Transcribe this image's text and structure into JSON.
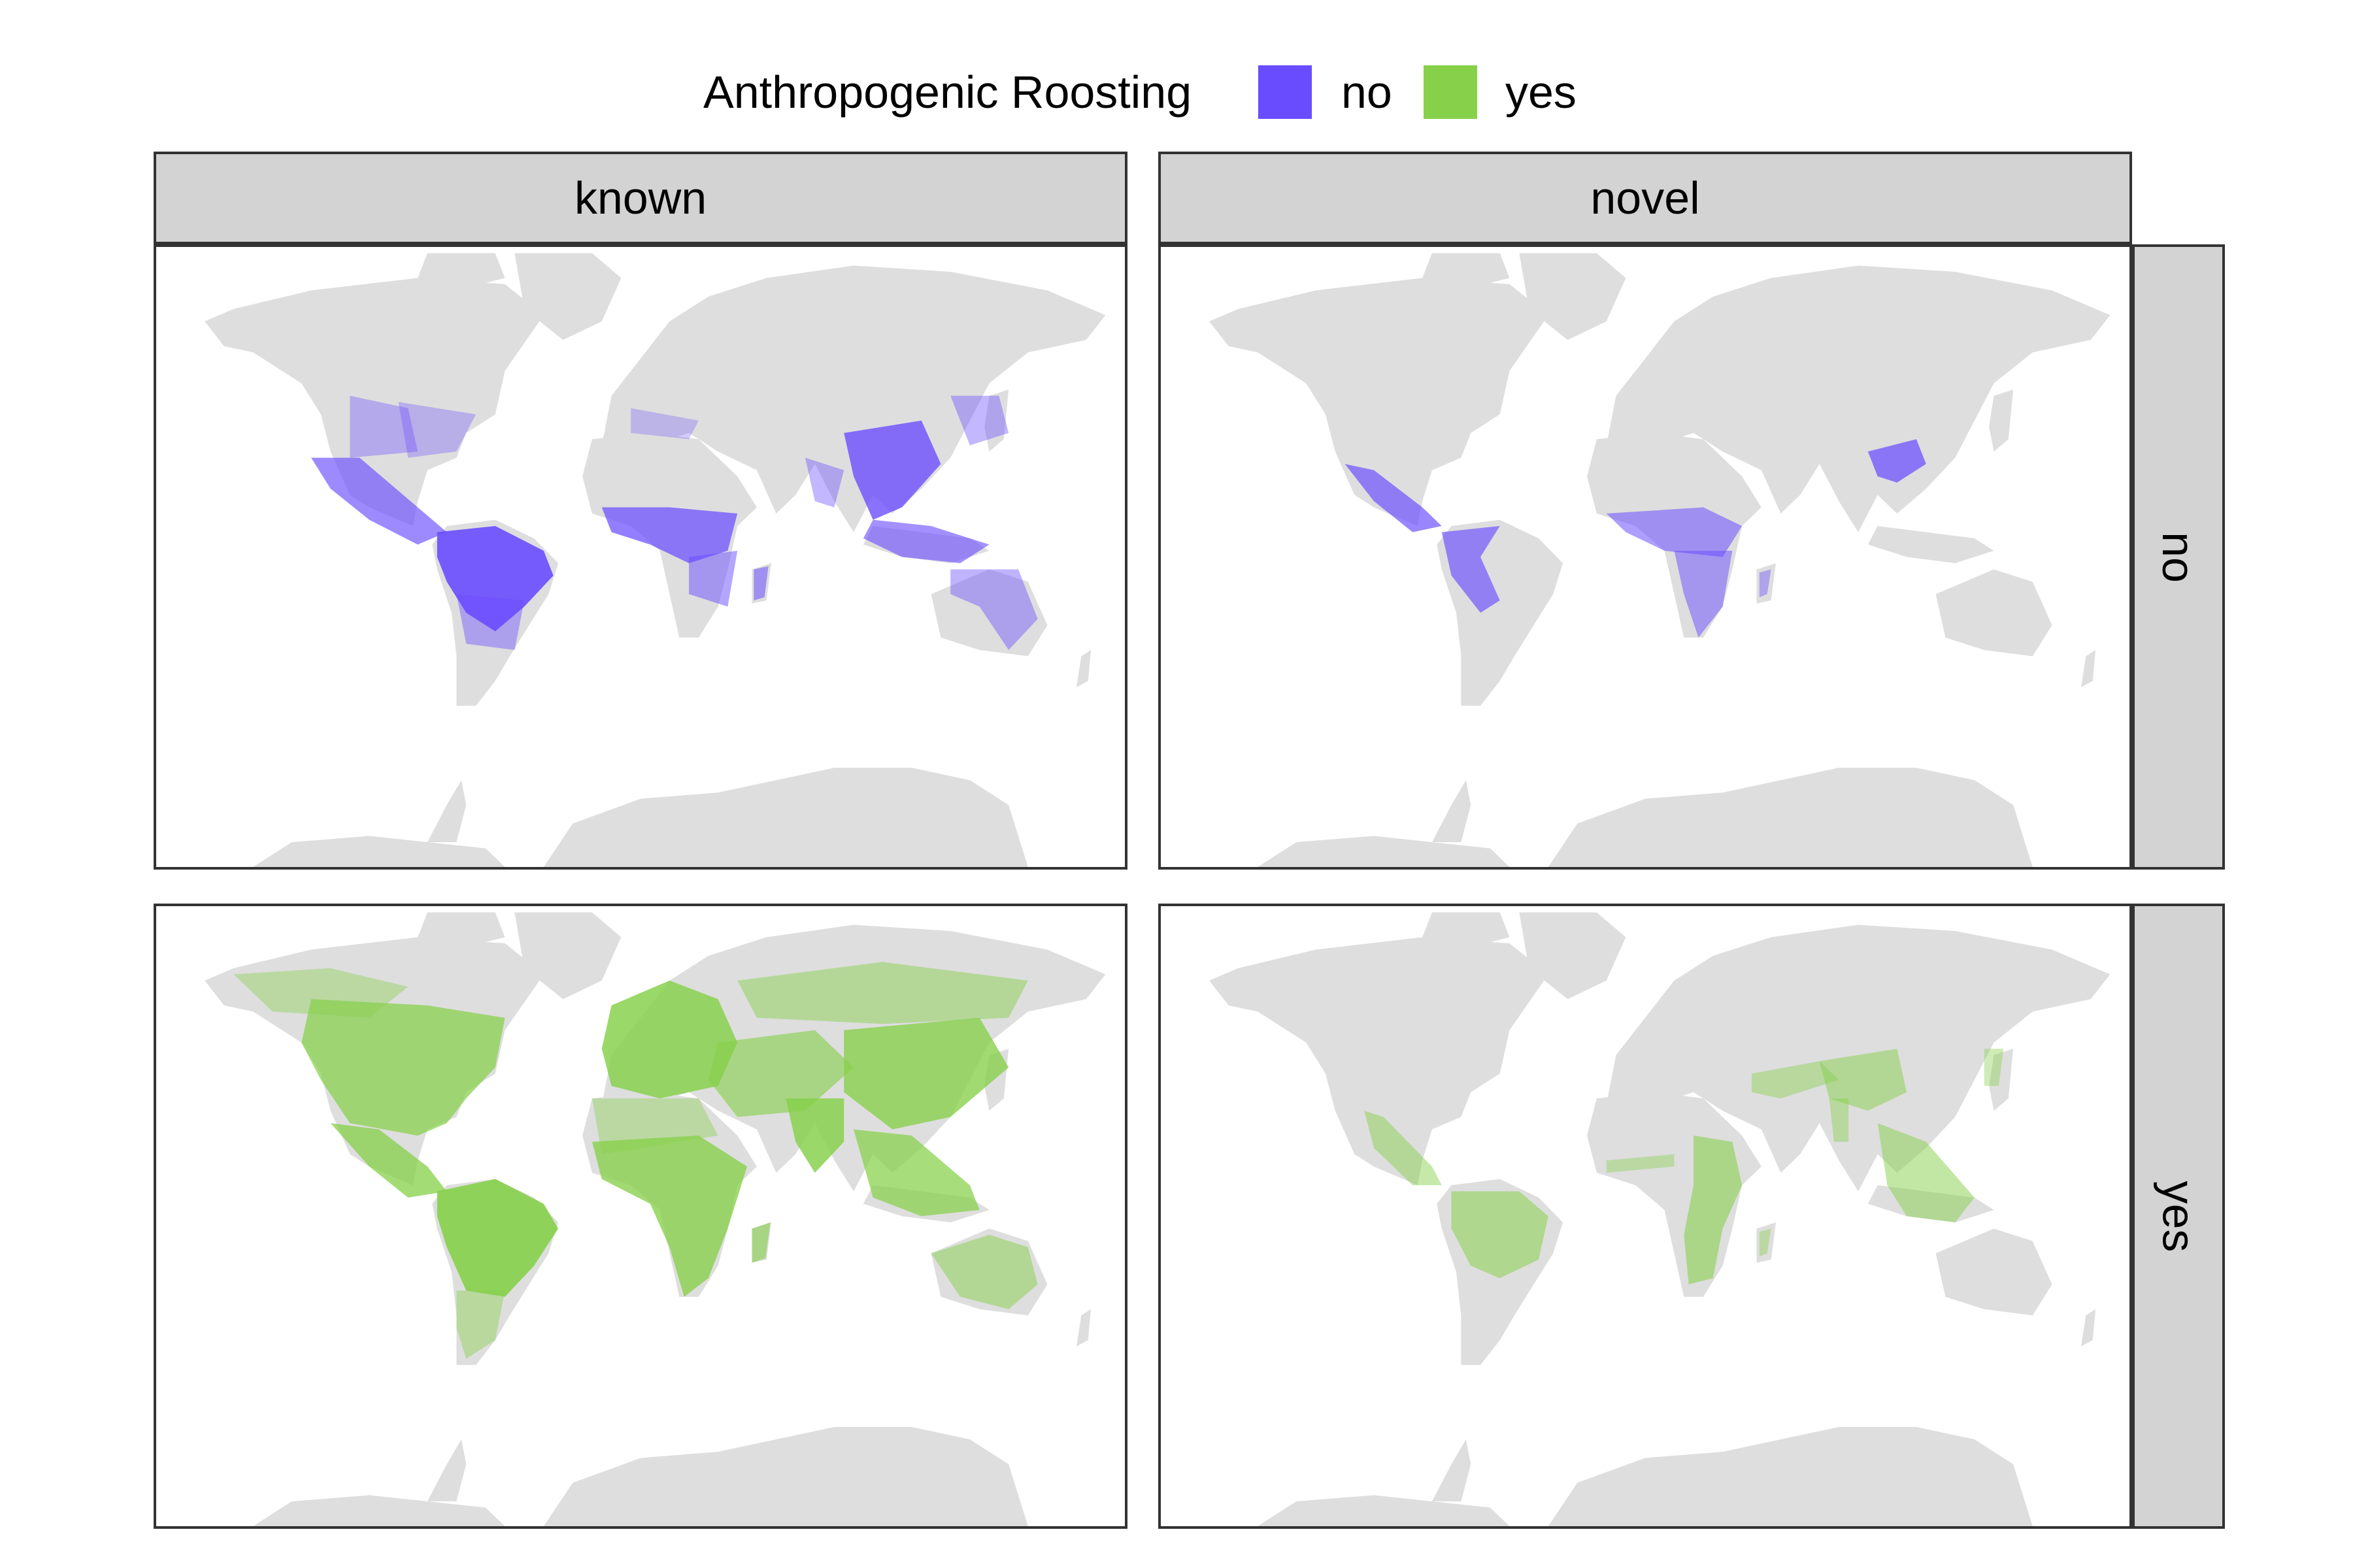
{
  "legend": {
    "title": "Anthropogenic Roosting",
    "items": [
      {
        "label": "no",
        "color": "#6a4cff"
      },
      {
        "label": "yes",
        "color": "#86d04a"
      }
    ]
  },
  "facets": {
    "columns": [
      "known",
      "novel"
    ],
    "rows": [
      "no",
      "yes"
    ]
  },
  "colors": {
    "land": "#dedede",
    "no": "#6a4cff",
    "yes": "#86d04a",
    "panel_border": "#333333",
    "strip_fill": "#d3d3d3"
  },
  "chart_data": {
    "type": "map",
    "projection": "mercator",
    "facet_layout": "grid",
    "fill_legend": "Anthropogenic Roosting",
    "panels": [
      {
        "column": "known",
        "row": "no",
        "fill_category": "no",
        "regions": [
          {
            "name": "Mexico & Central America",
            "intensity": 0.65
          },
          {
            "name": "Amazon / tropical South America",
            "intensity": 1.0
          },
          {
            "name": "Southeastern South America",
            "intensity": 0.35
          },
          {
            "name": "Western North America",
            "intensity": 0.25
          },
          {
            "name": "Eastern United States",
            "intensity": 0.2
          },
          {
            "name": "Central & West Africa",
            "intensity": 0.75
          },
          {
            "name": "Southeast Africa",
            "intensity": 0.45
          },
          {
            "name": "Madagascar",
            "intensity": 0.5
          },
          {
            "name": "Mediterranean",
            "intensity": 0.15
          },
          {
            "name": "India",
            "intensity": 0.3
          },
          {
            "name": "Southern China & Indochina",
            "intensity": 0.85
          },
          {
            "name": "Japan & Korea",
            "intensity": 0.3
          },
          {
            "name": "Indonesia & Philippines",
            "intensity": 0.6
          },
          {
            "name": "Northern & Eastern Australia",
            "intensity": 0.35
          }
        ]
      },
      {
        "column": "novel",
        "row": "no",
        "fill_category": "no",
        "regions": [
          {
            "name": "Mexico & Central America",
            "intensity": 0.7
          },
          {
            "name": "Northwestern South America",
            "intensity": 0.65
          },
          {
            "name": "Central Africa",
            "intensity": 0.5
          },
          {
            "name": "Southern Africa",
            "intensity": 0.45
          },
          {
            "name": "Madagascar",
            "intensity": 0.3
          },
          {
            "name": "Southern China & Indochina",
            "intensity": 0.75
          }
        ]
      },
      {
        "column": "known",
        "row": "yes",
        "fill_category": "yes",
        "regions": [
          {
            "name": "North America",
            "intensity": 0.75
          },
          {
            "name": "Southern Canada & Alaska",
            "intensity": 0.3
          },
          {
            "name": "Mexico & Central America",
            "intensity": 0.8
          },
          {
            "name": "Tropical South America",
            "intensity": 1.0
          },
          {
            "name": "Southern South America",
            "intensity": 0.35
          },
          {
            "name": "Europe",
            "intensity": 0.9
          },
          {
            "name": "Northern Africa & Sahara",
            "intensity": 0.3
          },
          {
            "name": "Sub-Saharan Africa",
            "intensity": 0.85
          },
          {
            "name": "Madagascar",
            "intensity": 0.6
          },
          {
            "name": "Middle East & Central Asia",
            "intensity": 0.6
          },
          {
            "name": "Siberia",
            "intensity": 0.4
          },
          {
            "name": "India",
            "intensity": 0.9
          },
          {
            "name": "China, Korea & Japan",
            "intensity": 0.85
          },
          {
            "name": "Southeast Asia & Indonesia",
            "intensity": 0.75
          },
          {
            "name": "Australia",
            "intensity": 0.45
          }
        ]
      },
      {
        "column": "novel",
        "row": "yes",
        "fill_category": "yes",
        "regions": [
          {
            "name": "Mexico & Central America",
            "intensity": 0.4
          },
          {
            "name": "Tropical South America",
            "intensity": 0.5
          },
          {
            "name": "Sahel",
            "intensity": 0.3
          },
          {
            "name": "East & Southern Africa",
            "intensity": 0.55
          },
          {
            "name": "Madagascar",
            "intensity": 0.3
          },
          {
            "name": "Middle East & Central Asia",
            "intensity": 0.35
          },
          {
            "name": "Himalaya & Southern China",
            "intensity": 0.45
          },
          {
            "name": "India",
            "intensity": 0.35
          },
          {
            "name": "Japan",
            "intensity": 0.3
          },
          {
            "name": "Southeast Asia & Indonesia",
            "intensity": 0.45
          }
        ]
      }
    ]
  }
}
